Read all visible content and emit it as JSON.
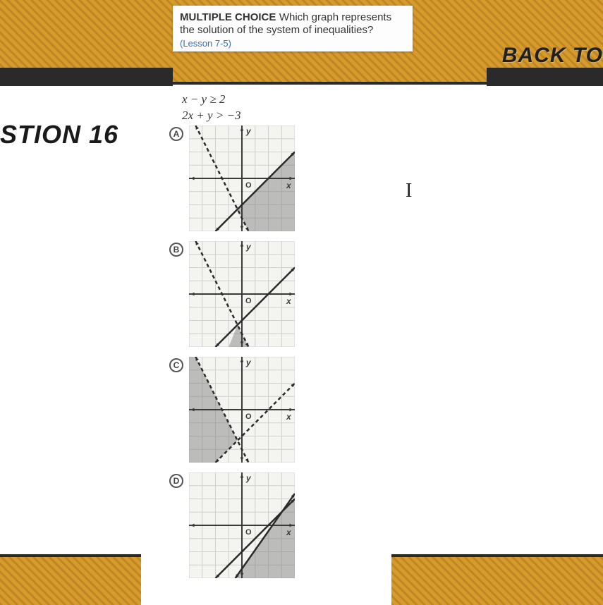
{
  "nav": {
    "back_label": "BACK TO",
    "question_label": "STION 16"
  },
  "question": {
    "mc_label": "MULTIPLE CHOICE",
    "prompt": " Which graph represents the solution of the system of inequalities?",
    "lesson_ref": "(Lesson 7-5)",
    "eq1": "x − y ≥ 2",
    "eq2": "2x + y > −3"
  },
  "choices": {
    "a_letter": "A",
    "b_letter": "B",
    "c_letter": "C",
    "d_letter": "D"
  },
  "graphs": {
    "common": {
      "grid_color": "#cfcfcf",
      "axis_color": "#3a3a3a",
      "bg": "#f4f4f0",
      "line_color": "#2b2b2b",
      "shade_color": "rgba(120,120,120,0.45)",
      "xmin": -4,
      "xmax": 4,
      "ymin": -4,
      "ymax": 4,
      "y_label": "y",
      "x_label": "x",
      "o_label": "O"
    },
    "A": {
      "line1": {
        "style": "solid",
        "pts": [
          [
            -2,
            -4
          ],
          [
            4,
            2
          ]
        ]
      },
      "line2": {
        "style": "dashed",
        "pts": [
          [
            -3.5,
            4
          ],
          [
            0.5,
            -4
          ]
        ]
      },
      "shade_poly": [
        [
          -0.333,
          -2.333
        ],
        [
          4,
          2
        ],
        [
          4,
          -4
        ],
        [
          0.5,
          -4
        ]
      ]
    },
    "B": {
      "line1": {
        "style": "solid",
        "pts": [
          [
            -2,
            -4
          ],
          [
            4,
            2
          ]
        ]
      },
      "line2": {
        "style": "dashed",
        "pts": [
          [
            -3.5,
            4
          ],
          [
            0.5,
            -4
          ]
        ]
      },
      "shade_poly": [
        [
          -0.333,
          -2.333
        ],
        [
          -1,
          -4
        ],
        [
          0.5,
          -4
        ]
      ]
    },
    "C": {
      "line1": {
        "style": "dashed",
        "pts": [
          [
            -2,
            -4
          ],
          [
            4,
            2
          ]
        ]
      },
      "line2": {
        "style": "dashed",
        "pts": [
          [
            -3.5,
            4
          ],
          [
            0.5,
            -4
          ]
        ]
      },
      "shade_poly": [
        [
          -0.333,
          -2.333
        ],
        [
          -3.5,
          4
        ],
        [
          -4,
          4
        ],
        [
          -4,
          -4
        ],
        [
          -2,
          -4
        ]
      ]
    },
    "D": {
      "line1": {
        "style": "solid",
        "pts": [
          [
            -2,
            -4
          ],
          [
            4,
            2
          ]
        ]
      },
      "line2": {
        "style": "solid",
        "pts": [
          [
            -0.5,
            -4
          ],
          [
            4,
            2.4
          ]
        ]
      },
      "shade_poly": [
        [
          4,
          2
        ],
        [
          4,
          -4
        ],
        [
          -0.5,
          -4
        ],
        [
          2.5,
          0.3
        ]
      ]
    }
  },
  "cursor": "I"
}
